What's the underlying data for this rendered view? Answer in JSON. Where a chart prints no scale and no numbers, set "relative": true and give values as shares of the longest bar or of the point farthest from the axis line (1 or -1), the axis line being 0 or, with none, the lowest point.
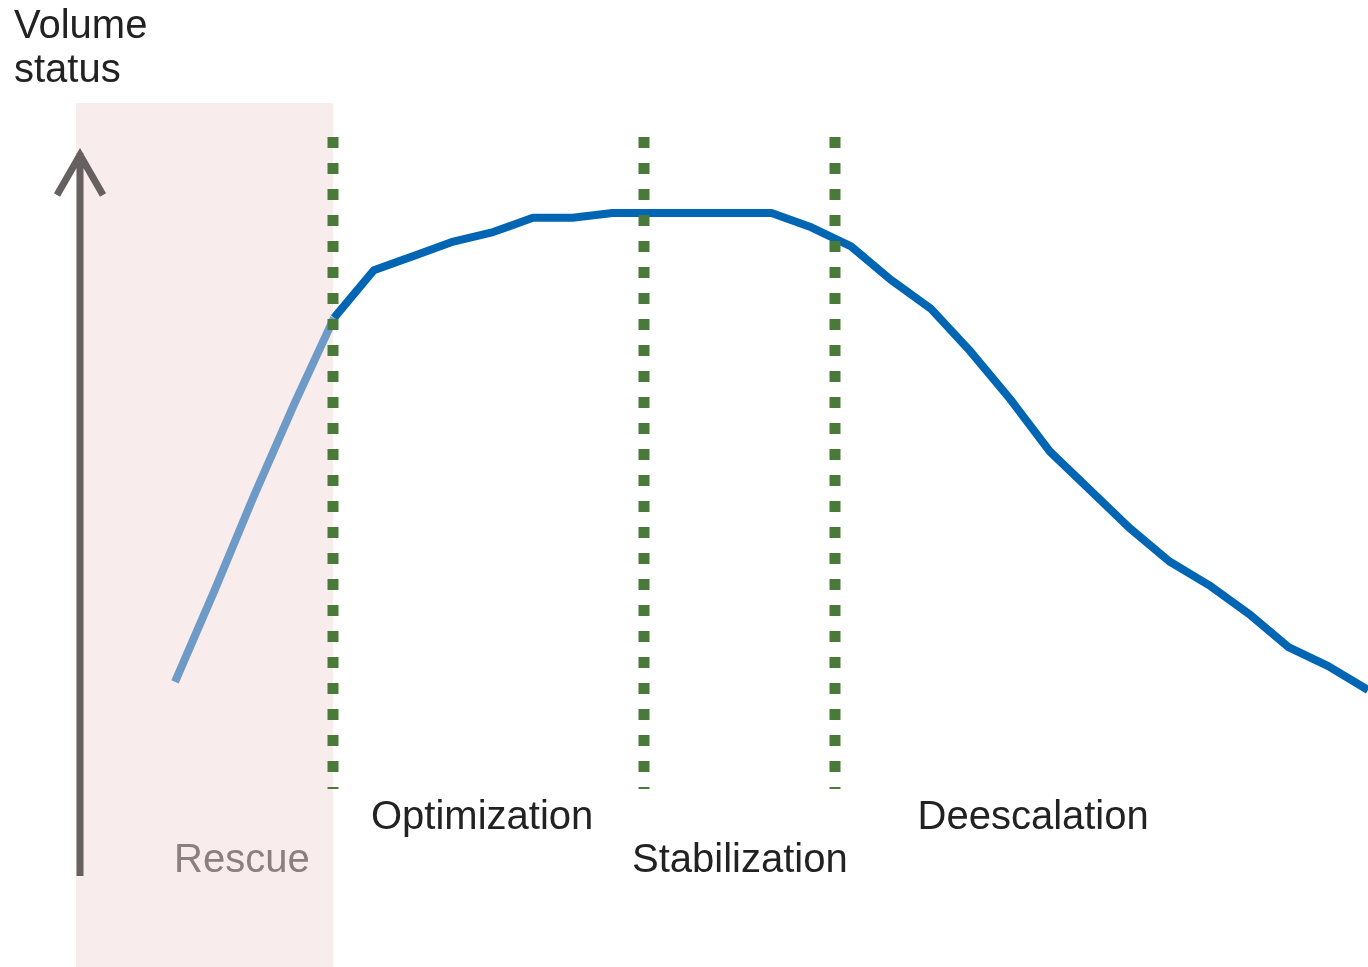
{
  "chart_data": {
    "type": "line",
    "ylabel": "Volume status",
    "relative": true,
    "categories": [
      null,
      null,
      null,
      null,
      null,
      null,
      null,
      null,
      null,
      null,
      null,
      null,
      null,
      null,
      null,
      null,
      null,
      null,
      null,
      null,
      null,
      null,
      null,
      null,
      null,
      null,
      null,
      null,
      null,
      null,
      null
    ],
    "legend": false,
    "marker": "none",
    "line_style": "solid",
    "series": [
      {
        "color": "#6d9ac6",
        "values": [
          0.017,
          0.21,
          0.41,
          0.6,
          0.78,
          null,
          null,
          null,
          null,
          null,
          null,
          null,
          null,
          null,
          null,
          null,
          null,
          null,
          null,
          null,
          null,
          null,
          null,
          null,
          null,
          null,
          null,
          null,
          null,
          null,
          null
        ]
      },
      {
        "color": "#0065b3",
        "values": [
          null,
          null,
          null,
          null,
          0.78,
          0.88,
          0.91,
          0.94,
          0.96,
          0.99,
          0.99,
          1.0,
          1.0,
          1.0,
          1.0,
          1.0,
          0.97,
          0.93,
          0.86,
          0.8,
          0.71,
          0.61,
          0.5,
          0.42,
          0.34,
          0.27,
          0.22,
          0.16,
          0.09,
          0.05,
          0
        ]
      }
    ],
    "annotations": [
      "Rescue",
      "Optimization",
      "Stabilization",
      "Deescalation"
    ]
  }
}
